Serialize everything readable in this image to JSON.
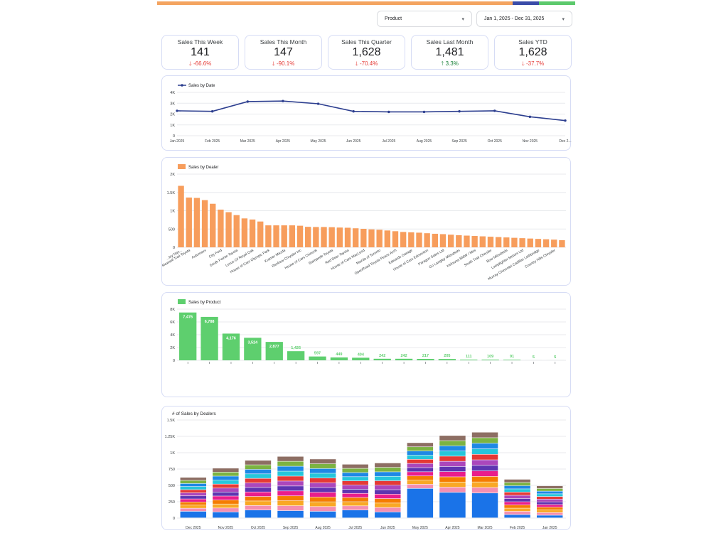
{
  "colors": {
    "topbar": [
      "#f4a460",
      "#f4a460",
      "#3a4ca8",
      "#5cc96c"
    ],
    "line": "#2c3e8f",
    "dealer_bar": "#f79d5c",
    "product_bar": "#5ecf6e",
    "negative": "#e53935",
    "positive": "#188038",
    "border": "#d6dcf5"
  },
  "controls": {
    "product_label": "Product",
    "date_range": "Jan 1, 2025 - Dec 31, 2025"
  },
  "kpis": [
    {
      "title": "Sales This Week",
      "value": "141",
      "delta": "-66.6%",
      "direction": "down"
    },
    {
      "title": "Sales This Month",
      "value": "147",
      "delta": "-90.1%",
      "direction": "down"
    },
    {
      "title": "Sales This Quarter",
      "value": "1,628",
      "delta": "-70.4%",
      "direction": "down"
    },
    {
      "title": "Sales Last Month",
      "value": "1,481",
      "delta": "3.3%",
      "direction": "up"
    },
    {
      "title": "Sales YTD",
      "value": "1,628",
      "delta": "-37.7%",
      "direction": "down"
    }
  ],
  "chart_data": [
    {
      "type": "line",
      "legend": "Sales by Date",
      "legend_position": "top-left",
      "x": [
        "Jan 2025",
        "Feb 2025",
        "Mar 2025",
        "Apr 2025",
        "May 2025",
        "Jun 2025",
        "Jul 2025",
        "Aug 2025",
        "Sep 2025",
        "Oct 2025",
        "Nov 2025",
        "Dec 2..."
      ],
      "series": [
        {
          "name": "Sales by Date",
          "values": [
            2300,
            2250,
            3150,
            3200,
            2950,
            2250,
            2200,
            2200,
            2250,
            2300,
            1750,
            1400
          ]
        }
      ],
      "yticks": [
        "0",
        "1K",
        "2K",
        "3K",
        "4K"
      ],
      "ylim": [
        0,
        4000
      ],
      "grid": true
    },
    {
      "type": "bar",
      "legend": "Sales by Dealer",
      "legend_position": "top-left",
      "categories": [
        "...ley Nan...",
        "Maxwell Trail Toyota",
        "",
        "Automaxx",
        "",
        "City Ford",
        "",
        "South Pointe Toyota",
        "",
        "Lexus Of Royal Oak",
        "",
        "House of Cars Olympic Park",
        "",
        "Kramer Mazda",
        "",
        "Renfrew Chrysler Inc",
        "",
        "House of Cars Chinook",
        "",
        "Stampede Toyota",
        "",
        "Red Deer Toyota",
        "",
        "House of Cars MacLeod",
        "",
        "Mazda of Toronto",
        "",
        "OpenRoad Toyota Peace Arch",
        "",
        "Edwards Garage",
        "",
        "House of Cars Edmonton",
        "",
        "Paragon Sales Ltd",
        "",
        "Go Langley Mitsubishi",
        "",
        "Kelowna BMW / Mini",
        "",
        "South Trail Chrysler",
        "",
        "Bow Mitsubishi",
        "",
        "Lamplighter Motors Ltd",
        "",
        "Murray Chevrolet Cadillac Lethbridge",
        "",
        "Country Hills Chrysler",
        ""
      ],
      "values": [
        1680,
        1360,
        1350,
        1290,
        1190,
        1030,
        960,
        880,
        790,
        760,
        705,
        600,
        600,
        600,
        600,
        590,
        560,
        555,
        555,
        550,
        540,
        535,
        520,
        505,
        490,
        480,
        460,
        440,
        420,
        410,
        400,
        385,
        370,
        360,
        345,
        330,
        320,
        310,
        300,
        290,
        280,
        270,
        260,
        250,
        240,
        230,
        220,
        210,
        195
      ],
      "yticks": [
        "0",
        "500",
        "1K",
        "1.5K",
        "2K"
      ],
      "ylim": [
        0,
        2000
      ],
      "grid": true
    },
    {
      "type": "bar",
      "legend": "Sales by Product",
      "legend_position": "top-left",
      "values": [
        7476,
        6788,
        4176,
        3524,
        2877,
        1426,
        597,
        449,
        404,
        242,
        242,
        217,
        205,
        111,
        109,
        91,
        5,
        5
      ],
      "labels": [
        "7,476",
        "6,788",
        "4,176",
        "3,524",
        "2,877",
        "1,426",
        "597",
        "449",
        "404",
        "242",
        "242",
        "217",
        "205",
        "111",
        "109",
        "91",
        "5",
        "5"
      ],
      "yticks": [
        "0",
        "2K",
        "4K",
        "6K",
        "8K"
      ],
      "ylim": [
        0,
        8000
      ],
      "grid": true
    },
    {
      "type": "bar",
      "title": "# of Sales by Dealers",
      "stacked": true,
      "categories": [
        "Dec 2025",
        "Nov 2025",
        "Oct 2025",
        "Sep 2025",
        "Aug 2025",
        "Jul 2025",
        "Jun 2025",
        "May 2025",
        "Apr 2025",
        "Mar 2025",
        "Feb 2025",
        "Jan 2025"
      ],
      "totals": [
        620,
        760,
        880,
        940,
        900,
        820,
        840,
        1150,
        1260,
        1310,
        590,
        490
      ],
      "bottom_segment": [
        100,
        90,
        120,
        110,
        100,
        120,
        90,
        450,
        390,
        380,
        50,
        40
      ],
      "segment_colors": [
        "#1a73e8",
        "#f48fb1",
        "#f9a825",
        "#f57c00",
        "#e91e8c",
        "#5e35b1",
        "#ab47bc",
        "#e53935",
        "#26c6da",
        "#1e88e5",
        "#7cb342",
        "#8d6e63"
      ],
      "yticks": [
        "0",
        "250",
        "500",
        "750",
        "1K",
        "1.25K",
        "1.5K"
      ],
      "ylim": [
        0,
        1500
      ],
      "grid": true
    }
  ]
}
